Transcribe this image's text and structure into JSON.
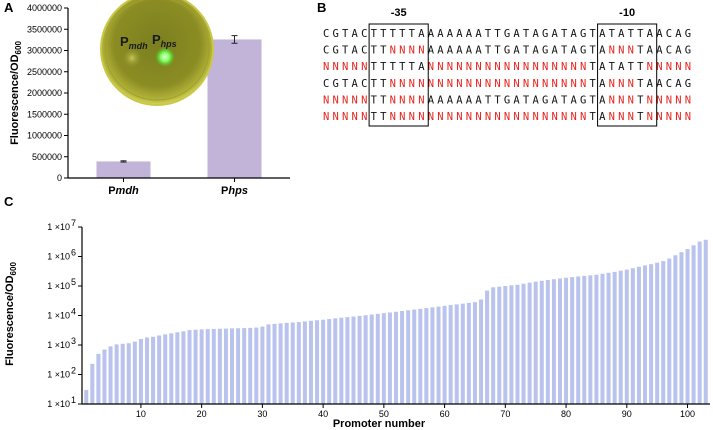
{
  "panels": {
    "a": "A",
    "b": "B",
    "c": "C"
  },
  "chart_data": [
    {
      "type": "bar",
      "panel": "A",
      "categories": [
        "Pmdh",
        "Phps"
      ],
      "category_parts": [
        [
          "P",
          "mdh"
        ],
        [
          "P",
          "hps"
        ]
      ],
      "values": [
        390000,
        3260000
      ],
      "errors": [
        15000,
        90000
      ],
      "ylabel_main": "Fluorescence/OD",
      "ylabel_sub": "600",
      "ylim": [
        0,
        4000000
      ],
      "yticks": [
        0,
        500000,
        1000000,
        1500000,
        2000000,
        2500000,
        3000000,
        3500000,
        4000000
      ],
      "bar_color": "#c2b3d8",
      "inset": {
        "label_left": [
          "P",
          "mdh"
        ],
        "label_right": [
          "P",
          "hps"
        ]
      }
    },
    {
      "type": "sequence",
      "panel": "B",
      "box_labels": [
        "-35",
        "-10"
      ],
      "box1_range": [
        5,
        11
      ],
      "box2_range": [
        29,
        35
      ],
      "sequences": [
        "CGTACTTTTTAAAAAAATTGATAGATAGTATATTAACAG",
        "CGTACTTNNNNAAAAAATTGATAGATAGTANNNTAACAG",
        "NNNNNTTTTTANNNNNNNNNNNNNNNNNTATATTNNNNN",
        "CGTACTTNNNNNNNNNNNNNNNNNNNNNTANNNTAACAG",
        "NNNNNTTNNNNAAAAAATTGATAGATAGTANNNTNNNNN",
        "NNNNNTTNNNNNNNNNNNNNNNNNNNNNTANNNTNNNNN"
      ],
      "n_color": "#e8221b",
      "base_color": "#111111"
    },
    {
      "type": "bar",
      "panel": "C",
      "scale": "log",
      "xlabel": "Promoter number",
      "ylabel_main": "Fluorescence/OD",
      "ylabel_sub": "600",
      "ylim": [
        10,
        10000000
      ],
      "ytick_labels": [
        "1 ×10",
        "1 ×10",
        "1 ×10",
        "1 ×10",
        "1 ×10",
        "1 ×10",
        "1 ×10"
      ],
      "ytick_exponents": [
        "1",
        "2",
        "3",
        "4",
        "5",
        "6",
        "7"
      ],
      "xticks": [
        10,
        20,
        30,
        40,
        50,
        60,
        70,
        80,
        90,
        100
      ],
      "bar_color": "#b9c3ee",
      "values": [
        30,
        230,
        500,
        700,
        900,
        1050,
        1100,
        1150,
        1300,
        1600,
        1800,
        1900,
        2100,
        2300,
        2500,
        2700,
        2900,
        3200,
        3300,
        3400,
        3450,
        3500,
        3550,
        3600,
        3650,
        3700,
        3750,
        3800,
        3900,
        4200,
        5000,
        5200,
        5400,
        5600,
        5800,
        6000,
        6300,
        6600,
        6900,
        7200,
        7600,
        8000,
        8400,
        8800,
        9200,
        9700,
        10200,
        10800,
        11400,
        12000,
        12700,
        13400,
        14200,
        15000,
        15900,
        16800,
        17800,
        18900,
        20000,
        21200,
        22500,
        23800,
        25200,
        26700,
        28300,
        35000,
        70000,
        90000,
        95000,
        100000,
        105000,
        110000,
        120000,
        130000,
        140000,
        150000,
        160000,
        170000,
        180000,
        190000,
        200000,
        210000,
        220000,
        230000,
        240000,
        260000,
        280000,
        300000,
        330000,
        360000,
        400000,
        450000,
        500000,
        550000,
        620000,
        700000,
        850000,
        1100000,
        1400000,
        1800000,
        2400000,
        3200000,
        3700000
      ]
    }
  ]
}
